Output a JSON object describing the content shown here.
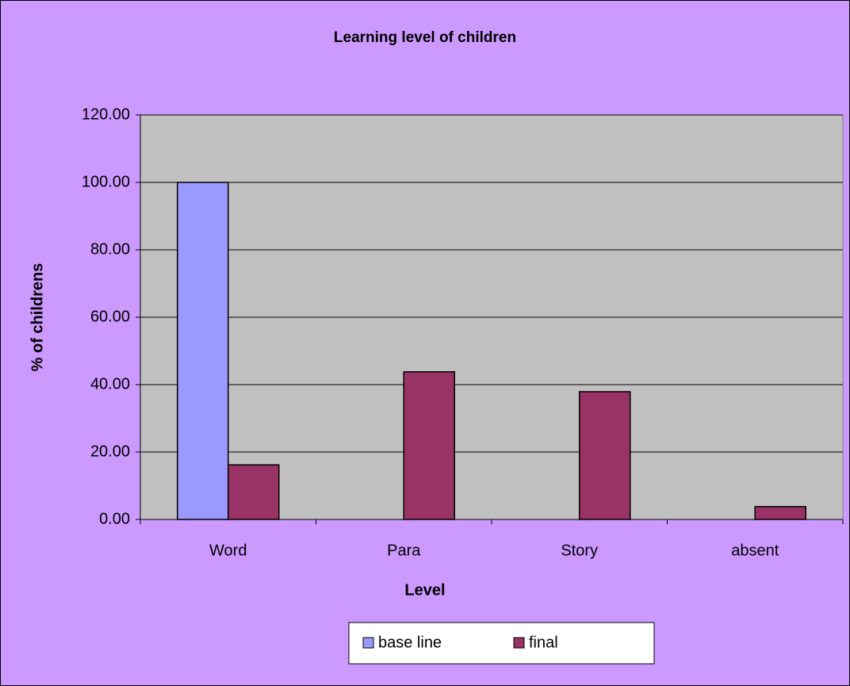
{
  "chart_data": {
    "type": "bar",
    "title": "Learning level of children",
    "x_label": "Level",
    "y_label": "% of childrens",
    "categories": [
      "Word",
      "Para",
      "Story",
      "absent"
    ],
    "series": [
      {
        "name": "base line",
        "color": "#9999ff",
        "values": [
          100,
          0,
          0,
          0
        ]
      },
      {
        "name": "final",
        "color": "#993366",
        "values": [
          16.2,
          43.8,
          37.9,
          3.8
        ]
      }
    ],
    "ylim": [
      0,
      120
    ],
    "yticks": [
      {
        "value": 0,
        "label": "0.00"
      },
      {
        "value": 20,
        "label": "20.00"
      },
      {
        "value": 40,
        "label": "40.00"
      },
      {
        "value": 60,
        "label": "60.00"
      },
      {
        "value": 80,
        "label": "80.00"
      },
      {
        "value": 100,
        "label": "100.00"
      },
      {
        "value": 120,
        "label": "120.00"
      }
    ],
    "grid": true,
    "legend": "bottom",
    "plot_background": "#c0c0c0",
    "background": "#cc99ff"
  }
}
